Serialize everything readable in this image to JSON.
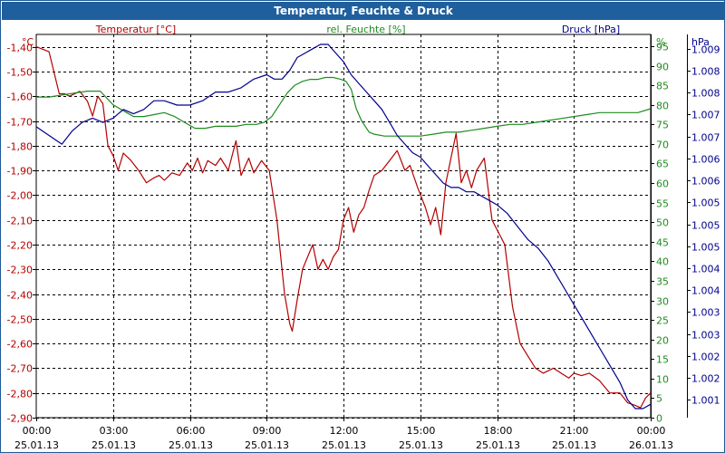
{
  "window": {
    "title": "Temperatur, Feuchte & Druck"
  },
  "colors": {
    "temperature": "#b40000",
    "humidity": "#1e8c1e",
    "pressure": "#00008c",
    "grid": "#000000",
    "titlebar": "#1f5f9e"
  },
  "chart_data": {
    "type": "line",
    "title": "Temperatur, Feuchte & Druck",
    "legend": [
      "Temperatur [°C]",
      "rel. Feuchte [%]",
      "Druck [hPa]"
    ],
    "axes": {
      "left": {
        "unit": "°C",
        "range": [
          -2.9,
          -1.35
        ],
        "ticks": [
          "-1,40",
          "-1,50",
          "-1,60",
          "-1,70",
          "-1,80",
          "-1,90",
          "-2,00",
          "-2,10",
          "-2,20",
          "-2,30",
          "-2,40",
          "-2,50",
          "-2,60",
          "-2,70",
          "-2,80",
          "-2,90"
        ]
      },
      "humidity": {
        "unit": "%",
        "range": [
          0,
          98
        ],
        "ticks": [
          "95",
          "90",
          "85",
          "80",
          "75",
          "70",
          "65",
          "60",
          "55",
          "50",
          "45",
          "40",
          "35",
          "30",
          "25",
          "20",
          "15",
          "10",
          "5",
          "0"
        ]
      },
      "right": {
        "unit": "hPa",
        "range": [
          1000.69,
          1009.53
        ],
        "ticks": [
          "1.009",
          "1.008",
          "1.008",
          "1.007",
          "1.007",
          "1.006",
          "1.006",
          "1.005",
          "1.005",
          "1.005",
          "1.004",
          "1.004",
          "1.003",
          "1.003",
          "1.002",
          "1.002",
          "1.001"
        ]
      },
      "x": {
        "range_hours": [
          0,
          24
        ],
        "ticks": [
          {
            "time": "00:00",
            "date": "25.01.13"
          },
          {
            "time": "03:00",
            "date": "25.01.13"
          },
          {
            "time": "06:00",
            "date": "25.01.13"
          },
          {
            "time": "09:00",
            "date": "25.01.13"
          },
          {
            "time": "12:00",
            "date": "25.01.13"
          },
          {
            "time": "15:00",
            "date": "25.01.13"
          },
          {
            "time": "18:00",
            "date": "25.01.13"
          },
          {
            "time": "21:00",
            "date": "25.01.13"
          },
          {
            "time": "00:00",
            "date": "26.01.13"
          }
        ]
      }
    },
    "series": [
      {
        "name": "Temperatur [°C]",
        "axis": "left",
        "x": [
          0,
          0.5,
          0.9,
          1.1,
          1.3,
          1.7,
          2,
          2.2,
          2.4,
          2.6,
          2.8,
          3.0,
          3.2,
          3.4,
          3.7,
          4.0,
          4.3,
          4.6,
          4.8,
          5.0,
          5.3,
          5.6,
          5.9,
          6.1,
          6.3,
          6.5,
          6.7,
          7.0,
          7.2,
          7.5,
          7.8,
          8.0,
          8.3,
          8.5,
          8.8,
          9.1,
          9.4,
          9.7,
          9.9,
          10.0,
          10.2,
          10.4,
          10.6,
          10.8,
          11.0,
          11.2,
          11.4,
          11.6,
          11.8,
          12.0,
          12.2,
          12.4,
          12.6,
          12.8,
          13.0,
          13.2,
          13.5,
          13.8,
          14.1,
          14.4,
          14.6,
          14.9,
          15.2,
          15.4,
          15.6,
          15.8,
          16.0,
          16.2,
          16.4,
          16.6,
          16.8,
          17.0,
          17.2,
          17.5,
          17.8,
          18.0,
          18.3,
          18.6,
          18.9,
          19.2,
          19.5,
          19.8,
          20.2,
          20.5,
          20.8,
          21.0,
          21.3,
          21.6,
          22.0,
          22.4,
          22.8,
          23.1,
          23.4,
          23.6,
          23.8,
          24.0
        ],
        "values": [
          -1.4,
          -1.42,
          -1.59,
          -1.59,
          -1.6,
          -1.58,
          -1.62,
          -1.68,
          -1.6,
          -1.63,
          -1.8,
          -1.84,
          -1.9,
          -1.83,
          -1.86,
          -1.9,
          -1.95,
          -1.93,
          -1.92,
          -1.94,
          -1.91,
          -1.92,
          -1.87,
          -1.9,
          -1.85,
          -1.91,
          -1.86,
          -1.88,
          -1.85,
          -1.9,
          -1.78,
          -1.92,
          -1.85,
          -1.91,
          -1.86,
          -1.9,
          -2.1,
          -2.4,
          -2.52,
          -2.55,
          -2.42,
          -2.3,
          -2.25,
          -2.2,
          -2.3,
          -2.26,
          -2.3,
          -2.25,
          -2.22,
          -2.1,
          -2.05,
          -2.15,
          -2.08,
          -2.05,
          -1.98,
          -1.92,
          -1.9,
          -1.86,
          -1.82,
          -1.9,
          -1.88,
          -1.97,
          -2.05,
          -2.12,
          -2.05,
          -2.16,
          -1.95,
          -1.85,
          -1.75,
          -1.95,
          -1.9,
          -1.97,
          -1.9,
          -1.85,
          -2.1,
          -2.14,
          -2.2,
          -2.45,
          -2.6,
          -2.65,
          -2.7,
          -2.72,
          -2.7,
          -2.72,
          -2.74,
          -2.72,
          -2.73,
          -2.72,
          -2.75,
          -2.8,
          -2.8,
          -2.84,
          -2.85,
          -2.86,
          -2.82,
          -2.8
        ]
      },
      {
        "name": "rel. Feuchte [%]",
        "axis": "humidity",
        "x": [
          0,
          0.5,
          1.0,
          1.5,
          2.0,
          2.5,
          3.0,
          3.4,
          3.8,
          4.2,
          4.6,
          5.0,
          5.4,
          5.8,
          6.2,
          6.6,
          7.0,
          7.4,
          7.8,
          8.2,
          8.6,
          8.9,
          9.2,
          9.5,
          9.8,
          10.1,
          10.4,
          10.7,
          11.0,
          11.3,
          11.6,
          11.9,
          12.1,
          12.3,
          12.5,
          12.7,
          13.0,
          13.2,
          13.6,
          14.0,
          14.5,
          15.0,
          15.5,
          16.0,
          16.5,
          17.0,
          17.5,
          18.0,
          18.5,
          19.0,
          19.5,
          20.0,
          20.5,
          21.0,
          21.5,
          22.0,
          22.5,
          23.0,
          23.5,
          24.0
        ],
        "values": [
          82,
          82,
          82.5,
          83,
          83.5,
          83.5,
          80,
          78.5,
          77,
          77,
          77.5,
          78,
          77,
          75.5,
          74,
          74,
          74.5,
          74.5,
          74.5,
          75,
          75,
          75.5,
          77,
          80,
          83,
          85,
          86,
          86.5,
          86.5,
          87,
          87,
          86.5,
          86,
          84,
          79,
          76,
          73,
          72.5,
          72,
          72,
          72,
          72,
          72.5,
          73,
          73,
          73.5,
          74,
          74.5,
          75,
          75,
          75.5,
          76,
          76.5,
          77,
          77.5,
          78,
          78,
          78,
          78,
          79
        ]
      },
      {
        "name": "Druck [hPa]",
        "axis": "right",
        "x": [
          0,
          0.5,
          1.0,
          1.4,
          1.8,
          2.2,
          2.6,
          3.0,
          3.4,
          3.8,
          4.2,
          4.6,
          5.0,
          5.5,
          6.0,
          6.5,
          7.0,
          7.5,
          8.0,
          8.5,
          9.0,
          9.3,
          9.6,
          9.9,
          10.2,
          10.5,
          10.8,
          11.1,
          11.4,
          11.7,
          12.0,
          12.3,
          12.6,
          12.9,
          13.2,
          13.5,
          13.8,
          14.1,
          14.4,
          14.7,
          15.0,
          15.3,
          15.6,
          15.9,
          16.2,
          16.5,
          16.8,
          17.1,
          17.4,
          17.7,
          18.0,
          18.4,
          18.8,
          19.2,
          19.6,
          20.0,
          20.4,
          20.8,
          21.2,
          21.6,
          22.0,
          22.4,
          22.8,
          23.1,
          23.4,
          23.7,
          24.0
        ],
        "values": [
          1007.4,
          1007.2,
          1007.0,
          1007.3,
          1007.5,
          1007.6,
          1007.5,
          1007.6,
          1007.8,
          1007.7,
          1007.8,
          1008.0,
          1008.0,
          1007.9,
          1007.9,
          1008.0,
          1008.2,
          1008.2,
          1008.3,
          1008.5,
          1008.6,
          1008.5,
          1008.5,
          1008.7,
          1009.0,
          1009.1,
          1009.2,
          1009.3,
          1009.3,
          1009.1,
          1008.9,
          1008.6,
          1008.4,
          1008.2,
          1008.0,
          1007.8,
          1007.5,
          1007.2,
          1007.0,
          1006.8,
          1006.7,
          1006.5,
          1006.3,
          1006.1,
          1006.0,
          1006.0,
          1005.9,
          1005.9,
          1005.8,
          1005.7,
          1005.6,
          1005.4,
          1005.1,
          1004.8,
          1004.6,
          1004.3,
          1003.9,
          1003.5,
          1003.1,
          1002.7,
          1002.3,
          1001.9,
          1001.5,
          1001.1,
          1000.9,
          1000.9,
          1001.0
        ]
      }
    ]
  }
}
